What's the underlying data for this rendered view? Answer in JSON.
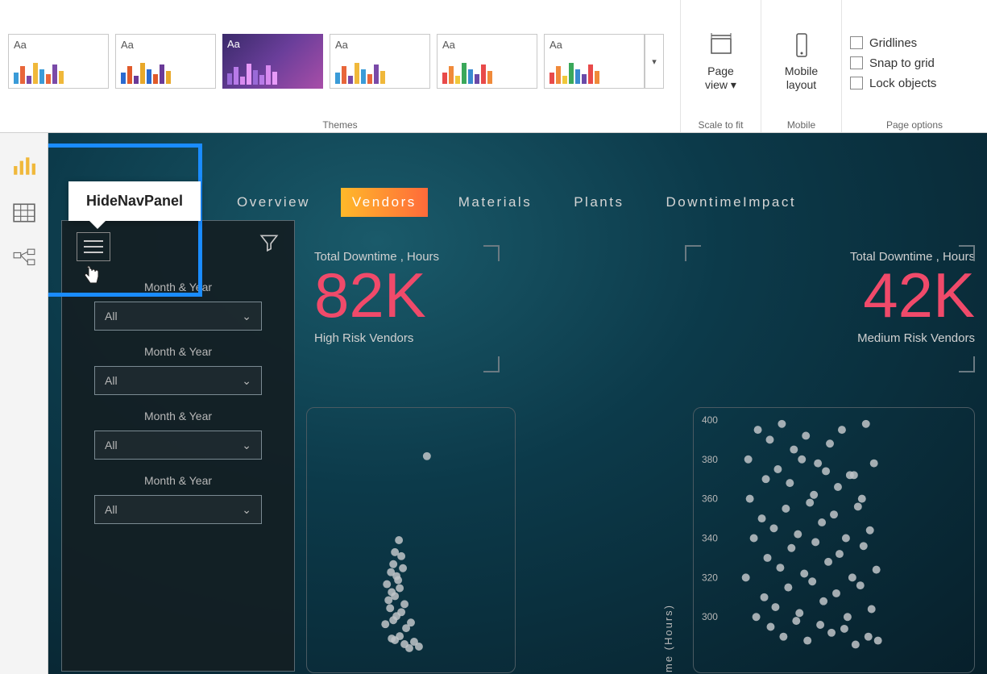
{
  "ribbon": {
    "themes_label": "Themes",
    "scale_label": "Scale to fit",
    "mobile_label": "Mobile",
    "pageopts_label": "Page options",
    "page_view": "Page view",
    "mobile_layout": "Mobile layout",
    "gridlines": "Gridlines",
    "snap": "Snap to grid",
    "lock": "Lock objects",
    "theme_thumbs": [
      {
        "bg": "#fff",
        "bars": [
          "#3a9bd8",
          "#e8663a",
          "#7a4aa8",
          "#f0b83a",
          "#3a9bd8",
          "#e8663a",
          "#7a4aa8",
          "#f0b83a"
        ]
      },
      {
        "bg": "#fff",
        "bars": [
          "#2a6ad0",
          "#e05a2a",
          "#6a3a98",
          "#e8a82a",
          "#2a6ad0",
          "#e05a2a",
          "#6a3a98",
          "#e8a82a"
        ]
      },
      {
        "bg": "sel",
        "bars": [
          "#9a6ad8",
          "#b87ae8",
          "#d88af0",
          "#e89af8",
          "#9a6ad8",
          "#b87ae8",
          "#d88af0",
          "#e89af8"
        ]
      },
      {
        "bg": "#fff",
        "bars": [
          "#3a9bd8",
          "#e8663a",
          "#7a4aa8",
          "#f0b83a",
          "#3a9bd8",
          "#e8663a",
          "#7a4aa8",
          "#f0b83a"
        ]
      },
      {
        "bg": "#fff",
        "bars": [
          "#e84a4a",
          "#f08a3a",
          "#f0c83a",
          "#3aa85a",
          "#3a8ad0",
          "#6a4aa8",
          "#e84a4a",
          "#f08a3a"
        ]
      },
      {
        "bg": "#fff",
        "bars": [
          "#e84a4a",
          "#f08a3a",
          "#f0c83a",
          "#3aa85a",
          "#3a8ad0",
          "#6a4aa8",
          "#e84a4a",
          "#f08a3a"
        ]
      }
    ]
  },
  "tooltip": "HideNavPanel",
  "tabs": [
    {
      "label": "Overview",
      "active": false
    },
    {
      "label": "Vendors",
      "active": true
    },
    {
      "label": "Materials",
      "active": false
    },
    {
      "label": "Plants",
      "active": false
    },
    {
      "label": "DowntimeImpact",
      "active": false
    }
  ],
  "filters": [
    {
      "label": "Month & Year",
      "value": "All"
    },
    {
      "label": "Month & Year",
      "value": "All"
    },
    {
      "label": "Month & Year",
      "value": "All"
    },
    {
      "label": "Month & Year",
      "value": "All"
    }
  ],
  "metric_left": {
    "title": "Total Downtime , Hours",
    "value": "82K",
    "sub": "High Risk Vendors"
  },
  "metric_right": {
    "title": "Total Downtime , Hours",
    "value": "42K",
    "sub": "Medium Risk Vendors"
  },
  "scatter_right": {
    "ylim": [
      280,
      400
    ],
    "yticks": [
      300,
      320,
      340,
      360,
      380,
      400
    ],
    "ylabel": "me (Hours)",
    "points": [
      [
        30,
        395
      ],
      [
        45,
        390
      ],
      [
        60,
        398
      ],
      [
        75,
        385
      ],
      [
        90,
        392
      ],
      [
        105,
        378
      ],
      [
        120,
        388
      ],
      [
        135,
        395
      ],
      [
        150,
        372
      ],
      [
        165,
        398
      ],
      [
        40,
        370
      ],
      [
        55,
        375
      ],
      [
        70,
        368
      ],
      [
        85,
        380
      ],
      [
        100,
        362
      ],
      [
        115,
        374
      ],
      [
        130,
        366
      ],
      [
        145,
        372
      ],
      [
        160,
        360
      ],
      [
        175,
        378
      ],
      [
        35,
        350
      ],
      [
        50,
        345
      ],
      [
        65,
        355
      ],
      [
        80,
        342
      ],
      [
        95,
        358
      ],
      [
        110,
        348
      ],
      [
        125,
        352
      ],
      [
        140,
        340
      ],
      [
        155,
        356
      ],
      [
        170,
        344
      ],
      [
        42,
        330
      ],
      [
        58,
        325
      ],
      [
        72,
        335
      ],
      [
        88,
        322
      ],
      [
        102,
        338
      ],
      [
        118,
        328
      ],
      [
        132,
        332
      ],
      [
        148,
        320
      ],
      [
        162,
        336
      ],
      [
        178,
        324
      ],
      [
        38,
        310
      ],
      [
        52,
        305
      ],
      [
        68,
        315
      ],
      [
        82,
        302
      ],
      [
        98,
        318
      ],
      [
        112,
        308
      ],
      [
        128,
        312
      ],
      [
        142,
        300
      ],
      [
        158,
        316
      ],
      [
        172,
        304
      ],
      [
        46,
        295
      ],
      [
        62,
        290
      ],
      [
        78,
        298
      ],
      [
        92,
        288
      ],
      [
        108,
        296
      ],
      [
        122,
        292
      ],
      [
        138,
        294
      ],
      [
        152,
        286
      ],
      [
        168,
        290
      ],
      [
        180,
        288
      ],
      [
        20,
        360
      ],
      [
        25,
        340
      ],
      [
        15,
        320
      ],
      [
        28,
        300
      ],
      [
        18,
        380
      ]
    ],
    "dot_color": "#c0c4c8",
    "dot_r": 5
  },
  "scatter_left": {
    "points": [
      [
        60,
        180
      ],
      [
        65,
        165
      ],
      [
        70,
        140
      ],
      [
        75,
        125
      ],
      [
        68,
        155
      ],
      [
        72,
        170
      ],
      [
        78,
        145
      ],
      [
        62,
        200
      ],
      [
        66,
        190
      ],
      [
        74,
        175
      ],
      [
        80,
        160
      ],
      [
        64,
        210
      ],
      [
        70,
        195
      ],
      [
        76,
        185
      ],
      [
        58,
        230
      ],
      [
        72,
        220
      ],
      [
        78,
        215
      ],
      [
        82,
        205
      ],
      [
        68,
        225
      ],
      [
        84,
        235
      ],
      [
        90,
        228
      ],
      [
        70,
        250
      ],
      [
        76,
        245
      ],
      [
        82,
        255
      ],
      [
        88,
        260
      ],
      [
        66,
        248
      ],
      [
        94,
        252
      ],
      [
        100,
        258
      ],
      [
        110,
        20
      ]
    ],
    "dot_color": "#c0c4c8",
    "dot_r": 5
  },
  "colors": {
    "accent_pink": "#f04a6a",
    "highlight": "#1a8cff"
  }
}
